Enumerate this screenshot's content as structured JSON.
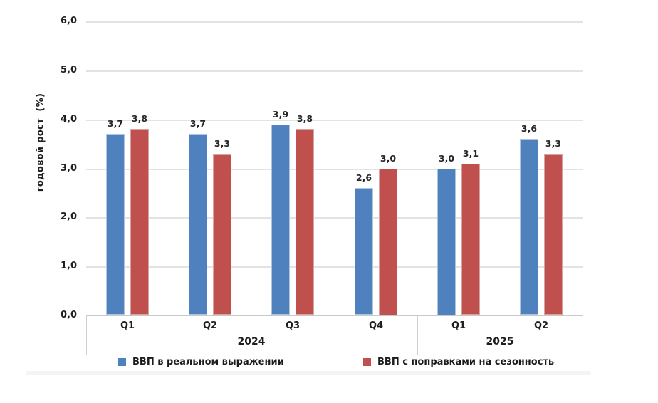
{
  "chart_data": {
    "type": "bar",
    "title": "",
    "ylabel": "годовой рост  (%)",
    "xlabel": "",
    "ylim": [
      0,
      6
    ],
    "ytick_step": 1,
    "decimal_separator": ",",
    "grid": true,
    "legend_position": "bottom",
    "x_axis": {
      "groups": [
        {
          "year": "2024",
          "quarters": [
            "Q1",
            "Q2",
            "Q3",
            "Q4"
          ]
        },
        {
          "year": "2025",
          "quarters": [
            "Q1",
            "Q2"
          ]
        }
      ]
    },
    "categories": [
      "Q1 2024",
      "Q2 2024",
      "Q3 2024",
      "Q4 2024",
      "Q1 2025",
      "Q2 2025"
    ],
    "series": [
      {
        "name": "ВВП в реальном выражении",
        "color": "#4E81BD",
        "border_color": "#AFC4DF",
        "values": [
          3.7,
          3.7,
          3.9,
          2.6,
          3.0,
          3.6
        ],
        "value_labels": [
          "3,7",
          "3,7",
          "3,9",
          "2,6",
          "3,0",
          "3,6"
        ]
      },
      {
        "name": "ВВП с поправками на сезонность",
        "color": "#C0504D",
        "border_color": "#D9A3A1",
        "values": [
          3.8,
          3.3,
          3.8,
          3.0,
          3.1,
          3.3
        ],
        "value_labels": [
          "3,8",
          "3,3",
          "3,8",
          "3,0",
          "3,1",
          "3,3"
        ]
      }
    ],
    "ytick_labels": [
      "0,0",
      "1,0",
      "2,0",
      "3,0",
      "4,0",
      "5,0",
      "6,0"
    ]
  }
}
